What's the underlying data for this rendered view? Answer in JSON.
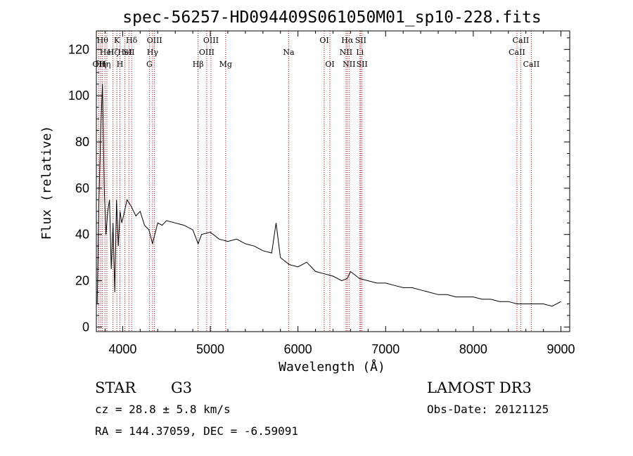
{
  "chart_data": {
    "type": "line",
    "title": "spec-56257-HD094409S061050M01_sp10-228.fits",
    "xlabel": "Wavelength (Å)",
    "ylabel": "Flux (relative)",
    "xlim": [
      3700,
      9100
    ],
    "ylim": [
      -2,
      128
    ],
    "xticks": [
      4000,
      5000,
      6000,
      7000,
      8000,
      9000
    ],
    "yticks": [
      0,
      20,
      40,
      60,
      80,
      100,
      120
    ],
    "series": [
      {
        "name": "spectrum",
        "x": [
          3710,
          3730,
          3750,
          3770,
          3790,
          3810,
          3830,
          3850,
          3870,
          3890,
          3910,
          3930,
          3950,
          3970,
          3990,
          4010,
          4050,
          4100,
          4150,
          4200,
          4250,
          4300,
          4340,
          4400,
          4450,
          4500,
          4600,
          4700,
          4800,
          4861,
          4900,
          5000,
          5100,
          5200,
          5300,
          5400,
          5500,
          5600,
          5700,
          5750,
          5800,
          5900,
          6000,
          6100,
          6200,
          6300,
          6400,
          6500,
          6563,
          6600,
          6700,
          6800,
          6900,
          7000,
          7100,
          7200,
          7300,
          7400,
          7500,
          7600,
          7700,
          7800,
          7900,
          8000,
          8100,
          8200,
          8300,
          8400,
          8500,
          8600,
          8700,
          8800,
          8900,
          9000
        ],
        "y": [
          10,
          55,
          85,
          105,
          60,
          40,
          50,
          55,
          25,
          45,
          15,
          55,
          35,
          50,
          45,
          48,
          55,
          52,
          48,
          50,
          44,
          42,
          36,
          45,
          44,
          46,
          45,
          44,
          42,
          36,
          40,
          41,
          38,
          37,
          38,
          36,
          35,
          33,
          32,
          45,
          30,
          27,
          26,
          28,
          24,
          23,
          22,
          20,
          21,
          24,
          21,
          20,
          19,
          19,
          18,
          17,
          17,
          16,
          15,
          14,
          14,
          13,
          13,
          13,
          12,
          12,
          11,
          11,
          10,
          10,
          10,
          10,
          9,
          11
        ]
      }
    ],
    "line_markers": [
      {
        "wave": 3727,
        "label": "OII",
        "row": 3
      },
      {
        "wave": 3750,
        "label": "Hη",
        "row": 3
      },
      {
        "wave": 3770,
        "label": "Hθ",
        "row": 1
      },
      {
        "wave": 3798,
        "label": "Hη",
        "row": 3
      },
      {
        "wave": 3820,
        "label": "HeI",
        "row": 2
      },
      {
        "wave": 3889,
        "label": "Hζ",
        "row": 2
      },
      {
        "wave": 3934,
        "label": "K",
        "row": 1
      },
      {
        "wave": 3969,
        "label": "H",
        "row": 3
      },
      {
        "wave": 4026,
        "label": "HeI",
        "row": 2
      },
      {
        "wave": 4072,
        "label": "SII",
        "row": 2
      },
      {
        "wave": 4102,
        "label": "Hδ",
        "row": 1
      },
      {
        "wave": 4305,
        "label": "G",
        "row": 3
      },
      {
        "wave": 4341,
        "label": "Hγ",
        "row": 2
      },
      {
        "wave": 4363,
        "label": "OIII",
        "row": 1
      },
      {
        "wave": 4861,
        "label": "Hβ",
        "row": 3
      },
      {
        "wave": 4959,
        "label": "OIII",
        "row": 2
      },
      {
        "wave": 5007,
        "label": "OIII",
        "row": 1
      },
      {
        "wave": 5175,
        "label": "Mg",
        "row": 3
      },
      {
        "wave": 5894,
        "label": "Na",
        "row": 2
      },
      {
        "wave": 6300,
        "label": "OI",
        "row": 1
      },
      {
        "wave": 6364,
        "label": "OI",
        "row": 3
      },
      {
        "wave": 6548,
        "label": "NII",
        "row": 2
      },
      {
        "wave": 6563,
        "label": "Hα",
        "row": 1
      },
      {
        "wave": 6583,
        "label": "NII",
        "row": 3
      },
      {
        "wave": 6707,
        "label": "Li",
        "row": 2
      },
      {
        "wave": 6716,
        "label": "SII",
        "row": 1
      },
      {
        "wave": 6731,
        "label": "SII",
        "row": 3
      },
      {
        "wave": 8498,
        "label": "CaII",
        "row": 2
      },
      {
        "wave": 8542,
        "label": "CaII",
        "row": 1
      },
      {
        "wave": 8662,
        "label": "CaII",
        "row": 3
      }
    ],
    "marker_color": "#c00000",
    "line_color": "#000000"
  },
  "info": {
    "object_class": "STAR",
    "subclass": "G3",
    "survey": "LAMOST DR3",
    "cz": "cz = 28.8 ± 5.8 km/s",
    "obs_date": "Obs-Date: 20121125",
    "coords": "RA = 144.37059, DEC =  -6.59091"
  }
}
